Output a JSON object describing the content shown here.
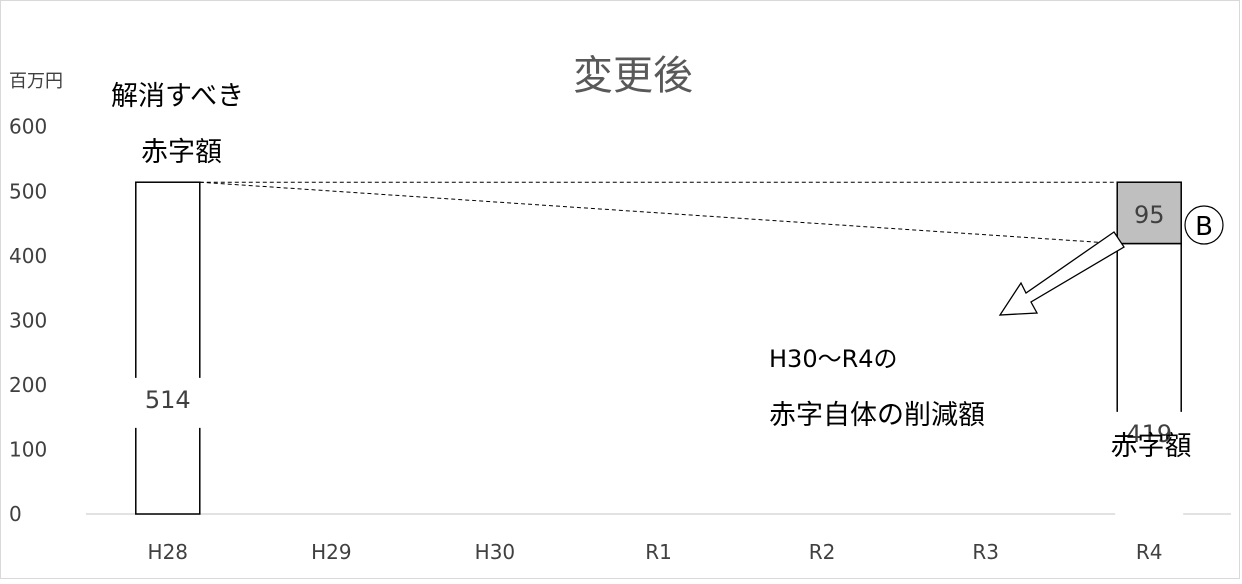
{
  "chart_data": {
    "type": "bar",
    "title": "変更後",
    "unit_label": "百万円",
    "categories": [
      "H28",
      "H29",
      "H30",
      "R1",
      "R2",
      "R3",
      "R4"
    ],
    "y_ticks": [
      "0",
      "100",
      "200",
      "300",
      "400",
      "500",
      "600"
    ],
    "ylim": [
      0,
      600
    ],
    "grid": false,
    "bars": [
      {
        "category": "H28",
        "base": 0,
        "value": 514,
        "label": "514",
        "fill": "#ffffff"
      },
      {
        "category": "R4",
        "base": 0,
        "value": 419,
        "label": "419",
        "fill": "#ffffff"
      },
      {
        "category": "R4",
        "base": 419,
        "value": 95,
        "label": "95",
        "fill": "#bfbfbf"
      }
    ],
    "annotations": {
      "deficit_to_resolve_line1": "解消すべき",
      "deficit_to_resolve_line2": "赤字額",
      "reduction_line1": "H30～R4の",
      "reduction_line2": "赤字自体の削減額",
      "r4_deficit_label": "赤字額",
      "circle_marker": "B"
    },
    "colors": {
      "axis": "#d9d9d9",
      "bar_stroke": "#000000",
      "highlight_fill": "#bfbfbf",
      "text": "#404040",
      "title": "#595959"
    }
  }
}
